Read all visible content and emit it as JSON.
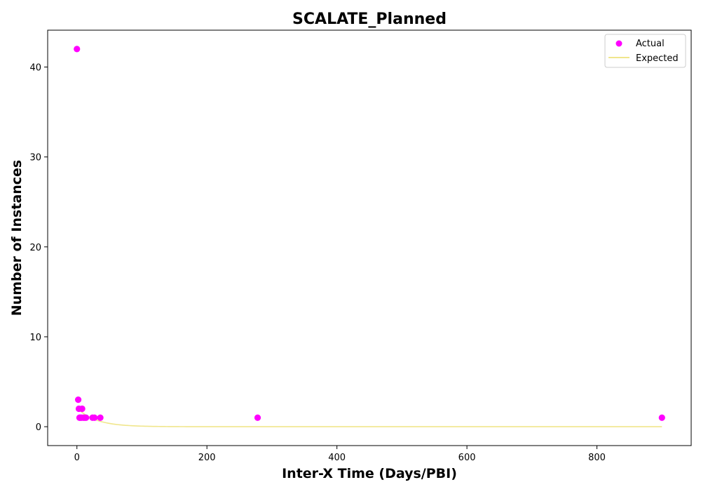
{
  "chart_data": {
    "type": "scatter",
    "title": "SCALATE_Planned",
    "xlabel": "Inter-X Time (Days/PBI)",
    "ylabel": "Number of Instances",
    "xlim": [
      -45,
      945
    ],
    "ylim": [
      -2.1,
      44.1
    ],
    "xticks": [
      0,
      200,
      400,
      600,
      800
    ],
    "yticks": [
      0,
      10,
      20,
      30,
      40
    ],
    "grid": false,
    "legend": "top-right",
    "series": [
      {
        "name": "Actual",
        "kind": "scatter",
        "color": "#ff00ff",
        "x": [
          0,
          2,
          3,
          4,
          5,
          7,
          8,
          10,
          12,
          14,
          24,
          27,
          36,
          278,
          900
        ],
        "y": [
          42,
          3,
          2,
          1,
          1,
          1,
          2,
          1,
          1,
          1,
          1,
          1,
          1,
          1,
          1
        ]
      },
      {
        "name": "Expected",
        "kind": "line",
        "color": "#f0e68c",
        "function": "exponential",
        "x_range": [
          0,
          900
        ],
        "y_at_zero": 2.1,
        "decay_rate": 0.035
      }
    ]
  }
}
